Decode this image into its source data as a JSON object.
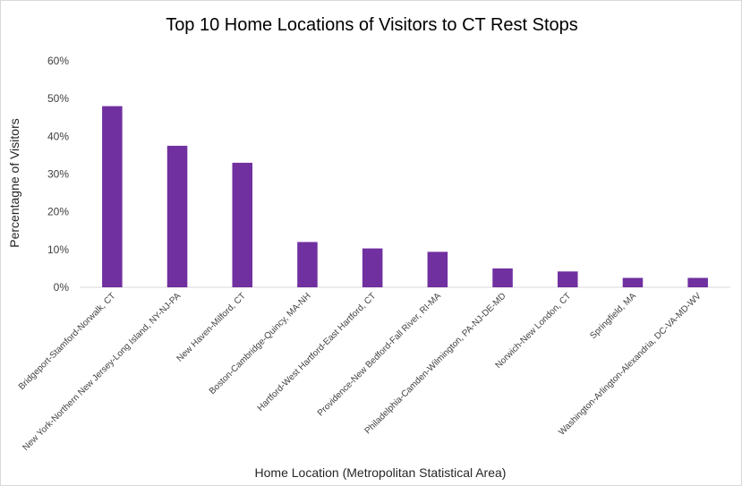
{
  "chart_data": {
    "type": "bar",
    "title": "Top 10 Home Locations of Visitors to CT Rest Stops",
    "xlabel": "Home Location (Metropolitan Statistical Area)",
    "ylabel": "Percentagne of Visitors",
    "categories": [
      "Bridgeport-Stamford-Norwalk, CT",
      "New York-Northern New Jersey-Long Island, NY-NJ-PA",
      "New Haven-Milford, CT",
      "Boston-Cambridge-Quincy, MA-NH",
      "Hartford-West Hartford-East Hartford, CT",
      "Providence-New Bedford-Fall River, RI-MA",
      "Philadelphia-Camden-Wilmington, PA-NJ-DE-MD",
      "Norwich-New London, CT",
      "Springfield, MA",
      "Washington-Arlington-Alexandria, DC-VA-MD-WV"
    ],
    "values": [
      0.48,
      0.375,
      0.33,
      0.12,
      0.103,
      0.094,
      0.05,
      0.042,
      0.025,
      0.025
    ],
    "ylim": [
      0,
      0.6
    ],
    "yticks": [
      {
        "value": 0,
        "label": "0%"
      },
      {
        "value": 0.1,
        "label": "10%"
      },
      {
        "value": 0.2,
        "label": "20%"
      },
      {
        "value": 0.3,
        "label": "30%"
      },
      {
        "value": 0.4,
        "label": "40%"
      },
      {
        "value": 0.5,
        "label": "50%"
      },
      {
        "value": 0.6,
        "label": "60%"
      }
    ],
    "grid": false,
    "legend": "none",
    "bar_color": "#7030a0",
    "axis_color": "#d9d9d9"
  }
}
